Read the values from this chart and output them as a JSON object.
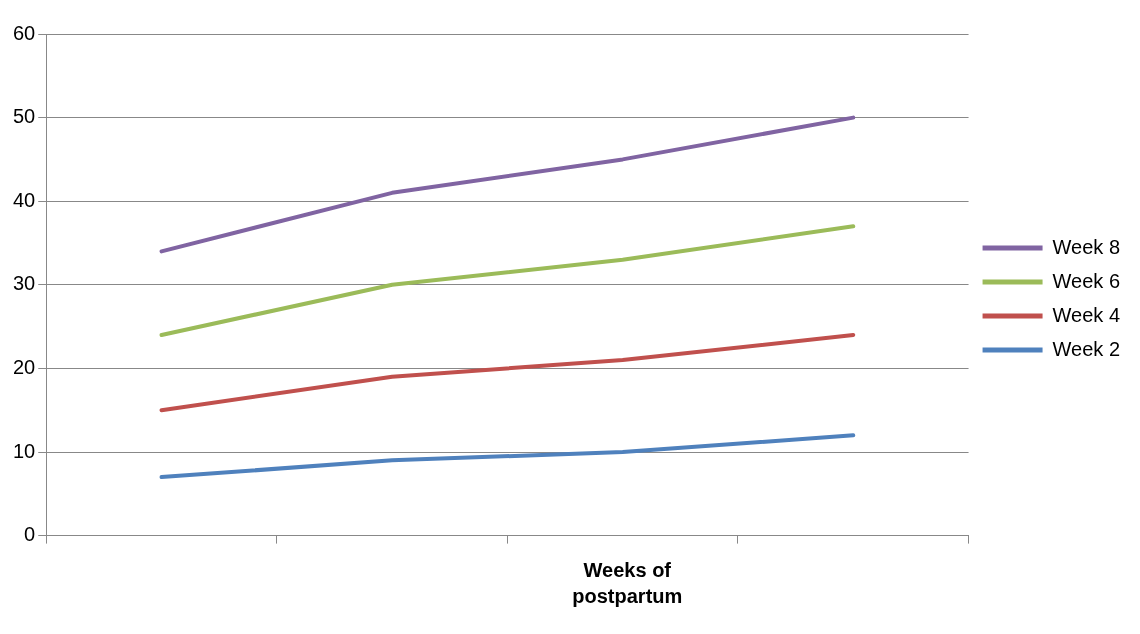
{
  "chart_data": {
    "type": "line",
    "xlabel": "Weeks of postpartum",
    "categories": [
      null,
      null,
      null,
      null
    ],
    "series": [
      {
        "name": "Week 8",
        "color": "#8064a2",
        "values": [
          34,
          41,
          45,
          50
        ]
      },
      {
        "name": "Week 6",
        "color": "#9bbb59",
        "values": [
          24,
          30,
          33,
          37
        ]
      },
      {
        "name": "Week 4",
        "color": "#c0504d",
        "values": [
          15,
          19,
          21,
          24
        ]
      },
      {
        "name": "Week 2",
        "color": "#4f81bd",
        "values": [
          7,
          9,
          10,
          12
        ]
      }
    ],
    "ylim": [
      0,
      60
    ],
    "yticks": [
      0,
      10,
      20,
      30,
      40,
      50,
      60
    ],
    "grid": "y",
    "legend": "right",
    "marker": "none",
    "line_style": "solid"
  }
}
